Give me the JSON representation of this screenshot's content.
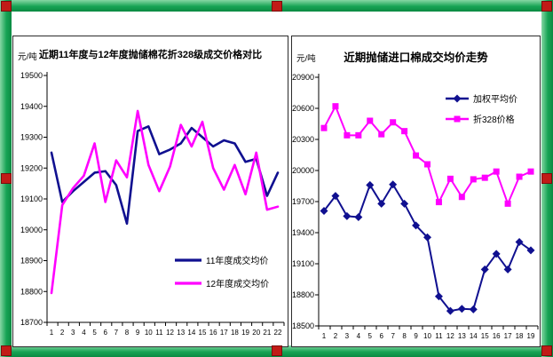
{
  "frame": {
    "border_color_light": "#86d6a4",
    "border_color_dark": "#0a8a42",
    "handle_color": "#c11b17"
  },
  "chart_data": [
    {
      "type": "line",
      "title": "近期11年度与12年度抛储棉花折328级成交价格对比",
      "ylabel": "元/吨",
      "ylim": [
        18700,
        19500
      ],
      "ytick_step": 100,
      "grid": false,
      "legend_position": "inside-bottom-right",
      "x": [
        1,
        2,
        3,
        4,
        5,
        6,
        7,
        8,
        9,
        10,
        11,
        12,
        13,
        14,
        15,
        16,
        17,
        18,
        19,
        20,
        21,
        22
      ],
      "series": [
        {
          "name": "11年度成交均价",
          "color": "#101090",
          "marker": "none",
          "values": [
            19250,
            19090,
            19125,
            19155,
            19185,
            19190,
            19145,
            19020,
            19320,
            19335,
            19245,
            19260,
            19280,
            19330,
            19300,
            19270,
            19290,
            19280,
            19220,
            19230,
            19110,
            19185
          ]
        },
        {
          "name": "12年度成交均价",
          "color": "#ff00ff",
          "marker": "none",
          "values": [
            18795,
            19080,
            19135,
            19175,
            19280,
            19090,
            19225,
            19170,
            19385,
            19210,
            19125,
            19205,
            19340,
            19270,
            19350,
            19200,
            19130,
            19210,
            19115,
            19250,
            19065,
            19075
          ]
        }
      ]
    },
    {
      "type": "line",
      "title": "近期抛储进口棉成交均价走势",
      "ylabel": "元/吨",
      "ylim": [
        18500,
        20900
      ],
      "ytick_step": 300,
      "grid": false,
      "legend_position": "inside-top-right",
      "x": [
        1,
        2,
        3,
        4,
        5,
        6,
        7,
        8,
        9,
        10,
        11,
        12,
        13,
        14,
        15,
        16,
        17,
        18,
        19
      ],
      "series": [
        {
          "name": "加权平均价",
          "color": "#101090",
          "marker": "diamond",
          "values": [
            19610,
            19755,
            19560,
            19550,
            19860,
            19680,
            19865,
            19680,
            19470,
            19355,
            18785,
            18645,
            18665,
            18660,
            19045,
            19195,
            19045,
            19310,
            19230
          ]
        },
        {
          "name": "折328价格",
          "color": "#ff00ff",
          "marker": "square",
          "values": [
            20410,
            20620,
            20340,
            20340,
            20480,
            20350,
            20465,
            20380,
            20145,
            20060,
            19695,
            19920,
            19745,
            19915,
            19930,
            19990,
            19680,
            19940,
            19990
          ]
        }
      ]
    }
  ]
}
